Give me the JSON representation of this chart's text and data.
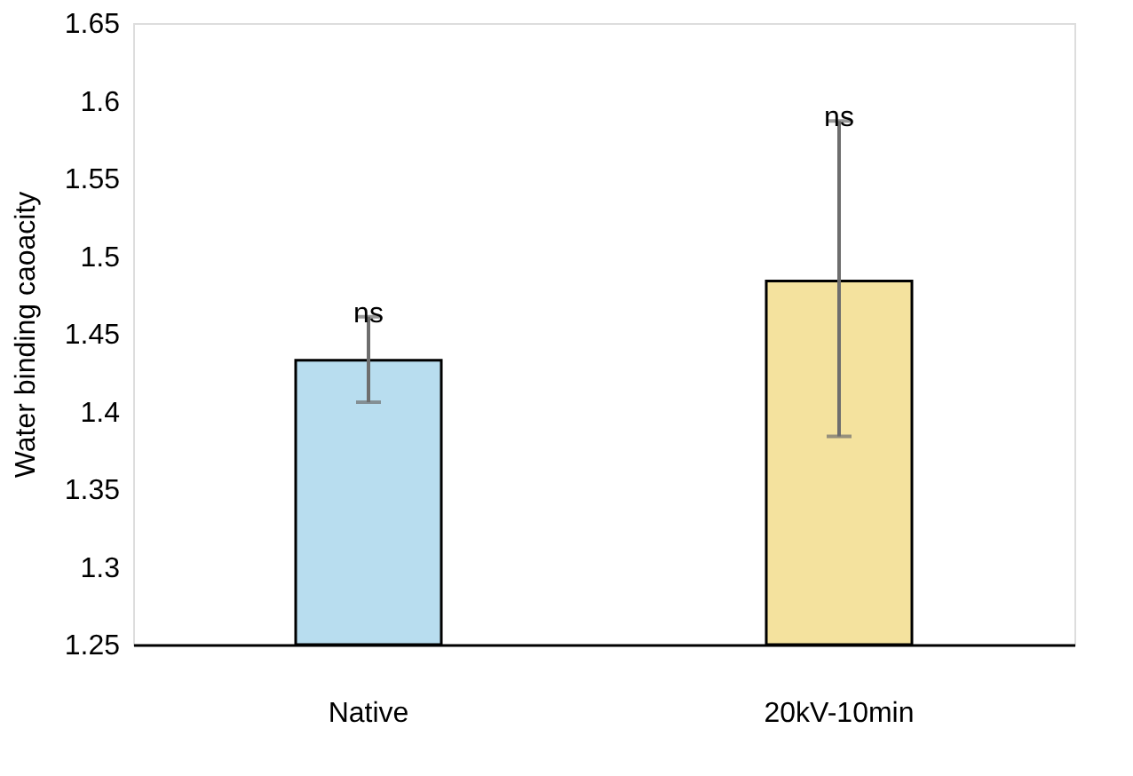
{
  "chart_data": {
    "type": "bar",
    "ylabel": "Water binding caoacity",
    "categories": [
      "Native",
      "20kV-10min"
    ],
    "values": [
      1.433,
      1.484
    ],
    "colors": [
      "#b8ddef",
      "#f4e29e"
    ],
    "errors": [
      [
        1.406,
        1.461
      ],
      [
        1.384,
        1.587
      ]
    ],
    "ylim": [
      1.25,
      1.65
    ],
    "yticks": [
      1.25,
      1.3,
      1.35,
      1.4,
      1.45,
      1.5,
      1.55,
      1.6,
      1.65
    ],
    "grid": false,
    "annotations": [
      {
        "text": "ns",
        "x": "Native",
        "y": 1.461
      },
      {
        "text": "ns",
        "x": "20kV-10min",
        "y": 1.587
      }
    ]
  }
}
